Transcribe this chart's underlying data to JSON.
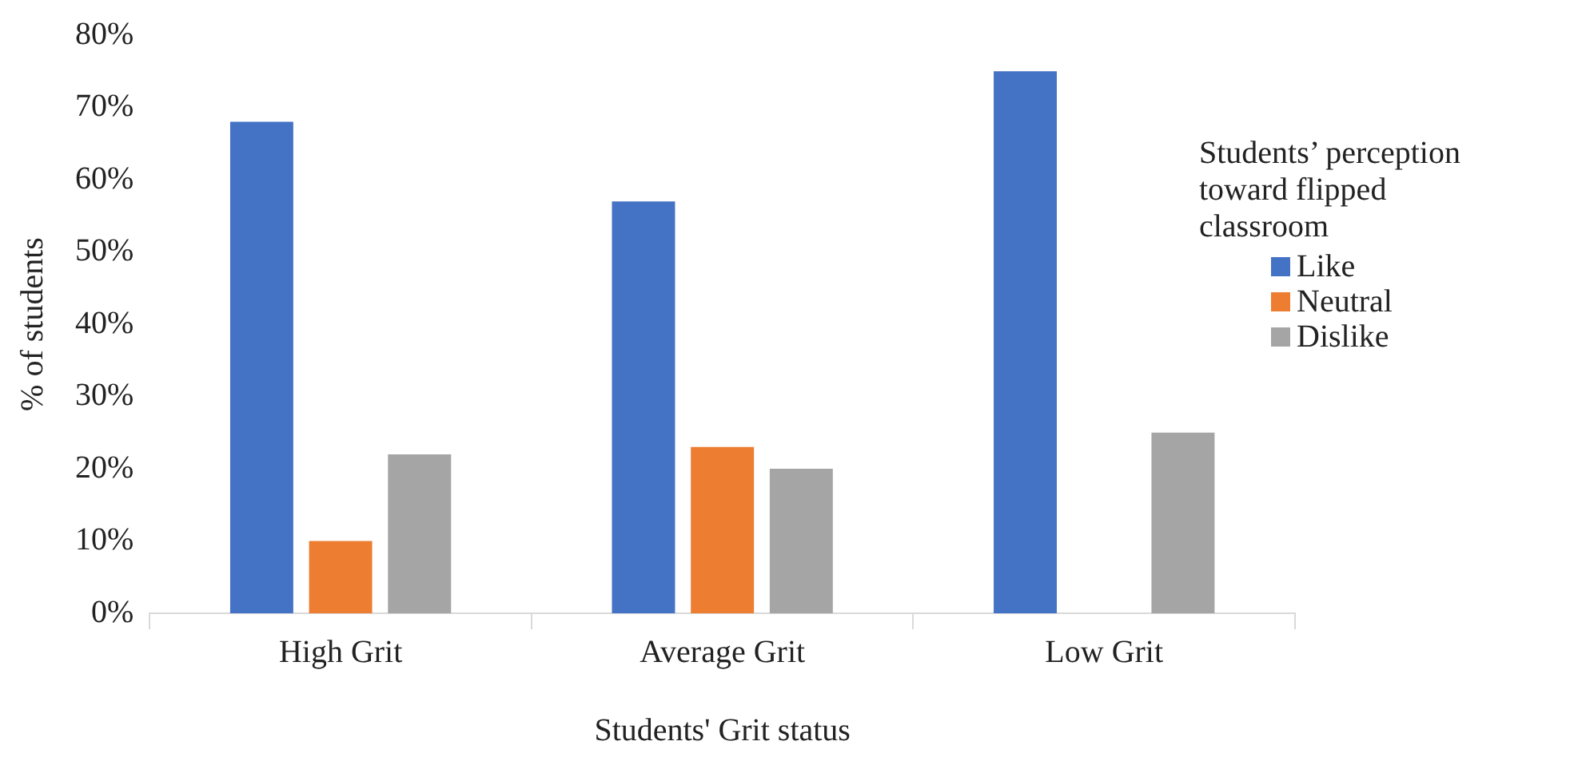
{
  "chart_data": {
    "type": "bar",
    "xlabel": "Students' Grit status",
    "ylabel": "% of students",
    "legend_title": "Students’ perception toward flipped classroom",
    "categories": [
      "High Grit",
      "Average Grit",
      "Low Grit"
    ],
    "series": [
      {
        "name": "Like",
        "color": "#4472c4",
        "values": [
          68,
          57,
          75
        ]
      },
      {
        "name": "Neutral",
        "color": "#ed7d31",
        "values": [
          10,
          23,
          0
        ]
      },
      {
        "name": "Dislike",
        "color": "#a5a5a5",
        "values": [
          22,
          20,
          25
        ]
      }
    ],
    "ylim": [
      0,
      80
    ],
    "yticks": [
      {
        "value": 0,
        "label": "0%"
      },
      {
        "value": 10,
        "label": "10%"
      },
      {
        "value": 20,
        "label": "20%"
      },
      {
        "value": 30,
        "label": "30%"
      },
      {
        "value": 40,
        "label": "40%"
      },
      {
        "value": 50,
        "label": "50%"
      },
      {
        "value": 60,
        "label": "60%"
      },
      {
        "value": 70,
        "label": "70%"
      },
      {
        "value": 80,
        "label": "80%"
      }
    ],
    "grid": false,
    "legend": "right"
  }
}
